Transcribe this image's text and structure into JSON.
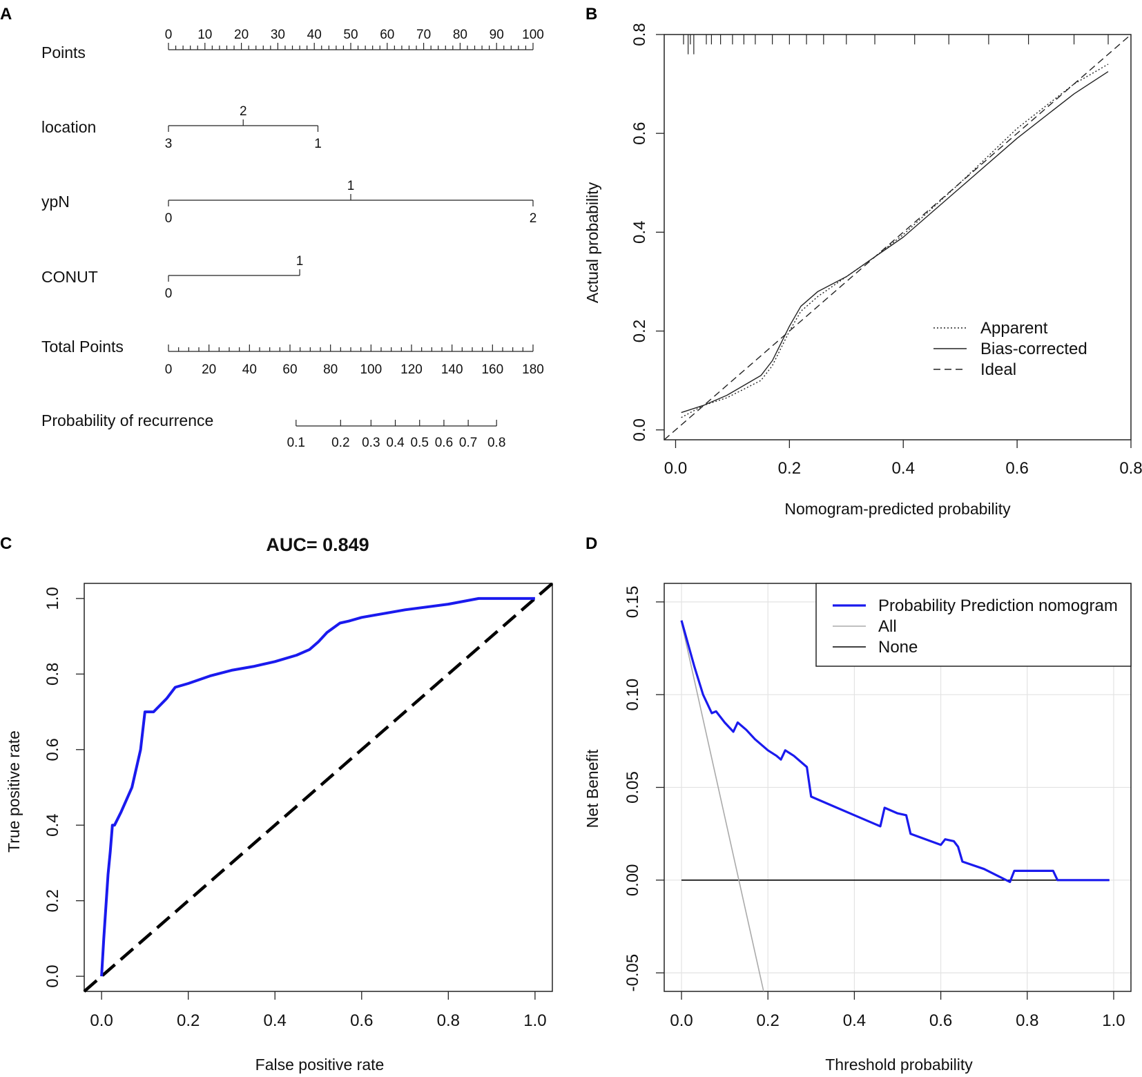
{
  "panels": {
    "a": "A",
    "b": "B",
    "c": "C",
    "d": "D"
  },
  "chart_data": [
    {
      "type": "nomogram",
      "panel": "A",
      "rows": [
        {
          "label": "Points",
          "min": 0,
          "max": 100,
          "tick_labels": [
            "0",
            "10",
            "20",
            "30",
            "40",
            "50",
            "60",
            "70",
            "80",
            "90",
            "100"
          ],
          "tick_values": [
            0,
            10,
            20,
            30,
            40,
            50,
            60,
            70,
            80,
            90,
            100
          ]
        },
        {
          "label": "location",
          "point_range": [
            0,
            41
          ],
          "levels": [
            {
              "label": "3",
              "points": 0
            },
            {
              "label": "2",
              "points": 20.5
            },
            {
              "label": "1",
              "points": 41
            }
          ]
        },
        {
          "label": "ypN",
          "point_range": [
            0,
            100
          ],
          "levels": [
            {
              "label": "0",
              "points": 0
            },
            {
              "label": "1",
              "points": 50
            },
            {
              "label": "2",
              "points": 100
            }
          ]
        },
        {
          "label": "CONUT",
          "point_range": [
            0,
            36
          ],
          "levels": [
            {
              "label": "0",
              "points": 0
            },
            {
              "label": "1",
              "points": 36
            }
          ]
        },
        {
          "label": "Total Points",
          "min": 0,
          "max": 180,
          "tick_labels": [
            "0",
            "20",
            "40",
            "60",
            "80",
            "100",
            "120",
            "140",
            "160",
            "180"
          ],
          "tick_values": [
            0,
            20,
            40,
            60,
            80,
            100,
            120,
            140,
            160,
            180
          ]
        },
        {
          "label": "Probability of recurrence",
          "tick_labels": [
            "0.1",
            "0.2",
            "0.3",
            "0.4",
            "0.5",
            "0.6",
            "0.7",
            "0.8"
          ],
          "total_points_at_tick": [
            63,
            85,
            100,
            112,
            124,
            136,
            148,
            162
          ]
        }
      ]
    },
    {
      "type": "line",
      "panel": "B",
      "title": "",
      "xlabel": "Nomogram-predicted probability",
      "ylabel": "Actual probability",
      "xlim": [
        -0.02,
        0.8
      ],
      "ylim": [
        -0.02,
        0.8
      ],
      "xticks": [
        "0.0",
        "0.2",
        "0.4",
        "0.6",
        "0.8"
      ],
      "yticks": [
        "0.0",
        "0.2",
        "0.4",
        "0.6",
        "0.8"
      ],
      "rug_x": [
        0.014,
        0.022,
        0.026,
        0.032,
        0.054,
        0.063,
        0.079,
        0.1,
        0.12,
        0.14,
        0.17,
        0.2,
        0.23,
        0.26,
        0.3,
        0.35,
        0.42,
        0.48,
        0.55,
        0.62,
        0.7,
        0.76
      ],
      "rug_height": [
        0.02,
        0.04,
        0.02,
        0.04,
        0.02,
        0.02,
        0.02,
        0.02,
        0.02,
        0.02,
        0.02,
        0.02,
        0.02,
        0.02,
        0.02,
        0.02,
        0.02,
        0.02,
        0.02,
        0.02,
        0.02,
        0.02
      ],
      "legend": [
        "Apparent",
        "Bias-corrected",
        "Ideal"
      ],
      "series": [
        {
          "name": "Apparent",
          "style": "dotted",
          "x": [
            0.01,
            0.05,
            0.09,
            0.15,
            0.17,
            0.2,
            0.22,
            0.25,
            0.3,
            0.35,
            0.4,
            0.5,
            0.6,
            0.7,
            0.76
          ],
          "y": [
            0.025,
            0.05,
            0.065,
            0.1,
            0.13,
            0.2,
            0.24,
            0.27,
            0.31,
            0.35,
            0.395,
            0.5,
            0.61,
            0.7,
            0.74
          ]
        },
        {
          "name": "Bias-corrected",
          "style": "solid",
          "x": [
            0.01,
            0.05,
            0.09,
            0.15,
            0.17,
            0.2,
            0.22,
            0.25,
            0.3,
            0.35,
            0.4,
            0.5,
            0.6,
            0.7,
            0.76
          ],
          "y": [
            0.035,
            0.05,
            0.07,
            0.11,
            0.14,
            0.21,
            0.25,
            0.28,
            0.31,
            0.35,
            0.39,
            0.49,
            0.59,
            0.68,
            0.725
          ]
        },
        {
          "name": "Ideal",
          "style": "dashed",
          "x": [
            -0.02,
            0.8
          ],
          "y": [
            -0.02,
            0.8
          ]
        }
      ]
    },
    {
      "type": "line",
      "panel": "C",
      "title": "AUC= 0.849",
      "xlabel": "False positive rate",
      "ylabel": "True positive rate",
      "xlim": [
        -0.04,
        1.04
      ],
      "ylim": [
        -0.04,
        1.04
      ],
      "xticks": [
        "0.0",
        "0.2",
        "0.4",
        "0.6",
        "0.8",
        "1.0"
      ],
      "yticks": [
        "0.0",
        "0.2",
        "0.4",
        "0.6",
        "0.8",
        "1.0"
      ],
      "series": [
        {
          "name": "ROC",
          "color": "#1a1aee",
          "x": [
            0.0,
            0.005,
            0.015,
            0.02,
            0.025,
            0.03,
            0.045,
            0.07,
            0.09,
            0.1,
            0.12,
            0.15,
            0.17,
            0.2,
            0.25,
            0.3,
            0.35,
            0.4,
            0.45,
            0.48,
            0.5,
            0.52,
            0.55,
            0.57,
            0.6,
            0.65,
            0.7,
            0.8,
            0.87,
            0.9,
            1.0
          ],
          "y": [
            0.0,
            0.1,
            0.27,
            0.33,
            0.4,
            0.4,
            0.435,
            0.5,
            0.6,
            0.7,
            0.7,
            0.735,
            0.765,
            0.775,
            0.795,
            0.81,
            0.82,
            0.833,
            0.85,
            0.865,
            0.885,
            0.91,
            0.935,
            0.94,
            0.95,
            0.96,
            0.97,
            0.985,
            1.0,
            1.0,
            1.0
          ]
        },
        {
          "name": "Reference",
          "style": "dashed",
          "x": [
            -0.04,
            1.04
          ],
          "y": [
            -0.04,
            1.04
          ]
        }
      ]
    },
    {
      "type": "line",
      "panel": "D",
      "title": "",
      "xlabel": "Threshold probability",
      "ylabel": "Net Benefit",
      "xlim": [
        -0.04,
        1.04
      ],
      "ylim": [
        -0.06,
        0.16
      ],
      "xticks": [
        "0.0",
        "0.2",
        "0.4",
        "0.6",
        "0.8",
        "1.0"
      ],
      "yticks": [
        "-0.05",
        "0.00",
        "0.05",
        "0.10",
        "0.15"
      ],
      "yticks_values": [
        -0.05,
        0.0,
        0.05,
        0.1,
        0.15
      ],
      "legend": [
        "Probability Prediction nomogram",
        "All",
        "None"
      ],
      "series": [
        {
          "name": "Probability Prediction nomogram",
          "color": "#1a1aee",
          "x": [
            0.0,
            0.03,
            0.05,
            0.07,
            0.08,
            0.1,
            0.12,
            0.13,
            0.15,
            0.17,
            0.2,
            0.22,
            0.23,
            0.24,
            0.26,
            0.29,
            0.3,
            0.35,
            0.4,
            0.46,
            0.47,
            0.5,
            0.52,
            0.53,
            0.6,
            0.61,
            0.63,
            0.64,
            0.65,
            0.7,
            0.76,
            0.77,
            0.86,
            0.87,
            0.99
          ],
          "y": [
            0.14,
            0.115,
            0.1,
            0.09,
            0.091,
            0.085,
            0.08,
            0.085,
            0.081,
            0.076,
            0.07,
            0.067,
            0.065,
            0.07,
            0.067,
            0.061,
            0.045,
            0.04,
            0.035,
            0.029,
            0.039,
            0.036,
            0.035,
            0.025,
            0.019,
            0.022,
            0.021,
            0.018,
            0.01,
            0.006,
            -0.001,
            0.005,
            0.005,
            0.0,
            0.0
          ]
        },
        {
          "name": "All",
          "color": "#aaaaaa",
          "x": [
            0.0,
            0.19
          ],
          "y": [
            0.139,
            -0.06
          ]
        },
        {
          "name": "None",
          "color": "#000000",
          "x": [
            0.0,
            0.99
          ],
          "y": [
            0.0,
            0.0
          ]
        }
      ]
    }
  ]
}
